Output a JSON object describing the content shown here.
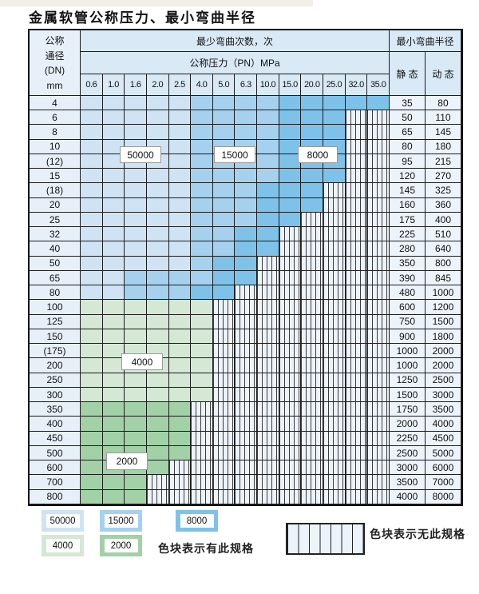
{
  "title": "金属软管公称压力、最小弯曲半径",
  "colors": {
    "z1": "#cfe3f4",
    "z2": "#a6d1ee",
    "z3": "#7fc2e9",
    "z4": "#d4e8d5",
    "z5": "#a2d1a7"
  },
  "table": {
    "corner": {
      "line1": "公称",
      "line2": "通径",
      "line3": "(DN)",
      "line4": "mm"
    },
    "bend_cycles_header": "最少弯曲次数，次",
    "pressure_header": "公称压力（PN）MPa",
    "radius_header": "最小弯曲半径",
    "static_header": "静 态",
    "dynamic_header": "动 态",
    "pressure_columns": [
      "0.6",
      "1.0",
      "1.6",
      "2.0",
      "2.5",
      "4.0",
      "5.0",
      "6.3",
      "10.0",
      "15.0",
      "20.0",
      "25.0",
      "32.0",
      "35.0"
    ],
    "zone_legend_note": "cells: 1=50000, 2=15000, 3=8000, 4=4000, 5=2000, x=无此规格",
    "rows": [
      {
        "dn": "4",
        "cells": "11111222233333",
        "static": "35",
        "dynamic": "80"
      },
      {
        "dn": "6",
        "cells": "111112222333xx",
        "static": "50",
        "dynamic": "110"
      },
      {
        "dn": "8",
        "cells": "111112222333xx",
        "static": "65",
        "dynamic": "145"
      },
      {
        "dn": "10",
        "cells": "111112222333xx",
        "static": "80",
        "dynamic": "180"
      },
      {
        "dn": "(12)",
        "cells": "111112222333xx",
        "static": "95",
        "dynamic": "215"
      },
      {
        "dn": "15",
        "cells": "111112222333xx",
        "static": "120",
        "dynamic": "270"
      },
      {
        "dn": "(18)",
        "cells": "11111222333xxx",
        "static": "145",
        "dynamic": "325"
      },
      {
        "dn": "20",
        "cells": "11111222333xxx",
        "static": "160",
        "dynamic": "360"
      },
      {
        "dn": "25",
        "cells": "1111122233xxxx",
        "static": "175",
        "dynamic": "400"
      },
      {
        "dn": "32",
        "cells": "111112233xxxxx",
        "static": "225",
        "dynamic": "510"
      },
      {
        "dn": "40",
        "cells": "111112233xxxxx",
        "static": "280",
        "dynamic": "640"
      },
      {
        "dn": "50",
        "cells": "11111233xxxxxx",
        "static": "350",
        "dynamic": "800"
      },
      {
        "dn": "65",
        "cells": "11222233xxxxxx",
        "static": "390",
        "dynamic": "845"
      },
      {
        "dn": "80",
        "cells": "1122233xxxxxxx",
        "static": "480",
        "dynamic": "1000"
      },
      {
        "dn": "100",
        "cells": "444444xxxxxxxx",
        "static": "600",
        "dynamic": "1200"
      },
      {
        "dn": "125",
        "cells": "444444xxxxxxxx",
        "static": "750",
        "dynamic": "1500"
      },
      {
        "dn": "150",
        "cells": "444444xxxxxxxx",
        "static": "900",
        "dynamic": "1800"
      },
      {
        "dn": "(175)",
        "cells": "444444xxxxxxxx",
        "static": "1000",
        "dynamic": "2000"
      },
      {
        "dn": "200",
        "cells": "444444xxxxxxxx",
        "static": "1000",
        "dynamic": "2000"
      },
      {
        "dn": "250",
        "cells": "444444xxxxxxxx",
        "static": "1250",
        "dynamic": "2500"
      },
      {
        "dn": "300",
        "cells": "444444xxxxxxxx",
        "static": "1500",
        "dynamic": "3000"
      },
      {
        "dn": "350",
        "cells": "55555xxxxxxxxx",
        "static": "1750",
        "dynamic": "3500"
      },
      {
        "dn": "400",
        "cells": "55555xxxxxxxxx",
        "static": "2000",
        "dynamic": "4000"
      },
      {
        "dn": "450",
        "cells": "55555xxxxxxxxx",
        "static": "2250",
        "dynamic": "4500"
      },
      {
        "dn": "500",
        "cells": "55555xxxxxxxxx",
        "static": "2500",
        "dynamic": "5000"
      },
      {
        "dn": "600",
        "cells": "5555xxxxxxxxxx",
        "static": "3000",
        "dynamic": "6000"
      },
      {
        "dn": "700",
        "cells": "555xxxxxxxxxxx",
        "static": "3500",
        "dynamic": "7000"
      },
      {
        "dn": "800",
        "cells": "555xxxxxxxxxxx",
        "static": "4000",
        "dynamic": "8000"
      }
    ]
  },
  "zone_labels": [
    {
      "text": "50000"
    },
    {
      "text": "15000"
    },
    {
      "text": "8000"
    },
    {
      "text": "4000"
    },
    {
      "text": "2000"
    }
  ],
  "legend": {
    "items": [
      {
        "label": "50000",
        "zone": "1"
      },
      {
        "label": "15000",
        "zone": "2"
      },
      {
        "label": "8000",
        "zone": "3"
      },
      {
        "label": "4000",
        "zone": "4"
      },
      {
        "label": "2000",
        "zone": "5"
      }
    ],
    "present_text": "色块表示有此规格",
    "absent_text": "色块表示无此规格"
  }
}
